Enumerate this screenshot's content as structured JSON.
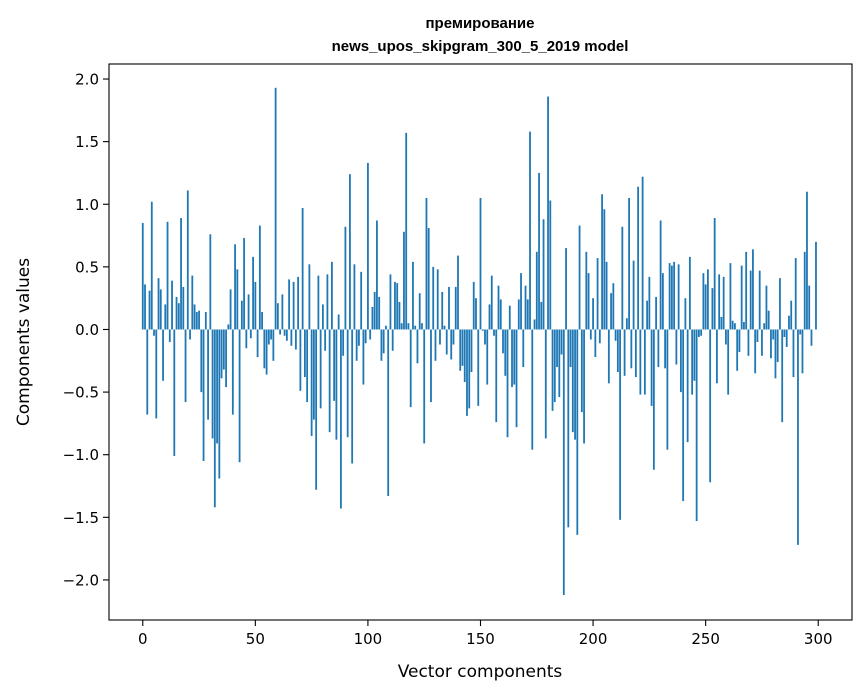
{
  "chart_data": {
    "type": "bar",
    "title_line1": "премирование",
    "title_line2": "news_upos_skipgram_300_5_2019 model",
    "xlabel": "Vector components",
    "ylabel": "Components values",
    "xlim": [
      -15,
      315
    ],
    "ylim": [
      -2.32,
      2.12
    ],
    "xticks": [
      0,
      50,
      100,
      150,
      200,
      250,
      300
    ],
    "yticks": [
      -2.0,
      -1.5,
      -1.0,
      -0.5,
      0.0,
      0.5,
      1.0,
      1.5,
      2.0
    ],
    "ytick_labels": [
      "−2.0",
      "−1.5",
      "−1.0",
      "−0.5",
      "0.0",
      "0.5",
      "1.0",
      "1.5",
      "2.0"
    ],
    "bar_color": "#1f77b4",
    "values": [
      0.85,
      0.36,
      -0.68,
      0.31,
      1.02,
      -0.05,
      -0.71,
      0.41,
      0.32,
      -0.41,
      0.2,
      0.86,
      -0.1,
      0.39,
      -1.01,
      0.26,
      0.21,
      0.89,
      0.34,
      -0.58,
      1.11,
      -0.08,
      0.43,
      0.2,
      0.14,
      0.15,
      -0.5,
      -1.05,
      0.14,
      -0.72,
      0.76,
      -0.87,
      -1.42,
      -0.91,
      -1.19,
      -0.39,
      -0.32,
      -0.46,
      0.04,
      0.32,
      -0.68,
      0.68,
      0.48,
      -1.06,
      0.23,
      0.73,
      -0.15,
      0.28,
      -0.07,
      0.58,
      0.38,
      -0.22,
      0.83,
      0.14,
      -0.31,
      -0.36,
      -0.12,
      -0.08,
      -0.25,
      1.93,
      0.21,
      -0.04,
      0.28,
      -0.05,
      -0.09,
      0.4,
      -0.13,
      0.38,
      -0.16,
      0.42,
      -0.49,
      0.97,
      -0.38,
      -0.58,
      0.52,
      -0.85,
      -0.72,
      -1.28,
      0.43,
      -0.63,
      0.2,
      -0.17,
      0.44,
      -0.82,
      0.54,
      -0.57,
      -0.88,
      0.12,
      -1.43,
      -0.21,
      0.82,
      -0.86,
      1.24,
      -1.07,
      0.52,
      -0.25,
      -0.13,
      0.46,
      -0.44,
      -0.11,
      1.33,
      -0.08,
      0.18,
      0.3,
      0.87,
      0.26,
      -0.25,
      -0.19,
      0.03,
      -1.33,
      0.44,
      -0.17,
      0.38,
      0.37,
      0.22,
      0.05,
      0.78,
      1.57,
      0.05,
      -0.62,
      0.54,
      0.03,
      -0.27,
      0.29,
      0.05,
      -0.91,
      1.05,
      0.81,
      -0.58,
      0.5,
      -0.25,
      0.48,
      -0.12,
      0.3,
      0.03,
      -0.2,
      0.34,
      -0.24,
      -0.12,
      0.34,
      0.59,
      -0.33,
      -0.29,
      -0.42,
      -0.69,
      -0.63,
      -0.34,
      0.38,
      0.25,
      -0.61,
      1.05,
      -0.01,
      -0.12,
      -0.44,
      0.2,
      0.43,
      -0.05,
      -0.74,
      0.35,
      0.24,
      -0.19,
      -0.37,
      -0.86,
      0.19,
      -0.46,
      -0.44,
      -0.78,
      0.24,
      0.45,
      -0.3,
      0.35,
      0.24,
      1.58,
      -0.96,
      0.08,
      0.62,
      1.25,
      0.22,
      0.88,
      -0.87,
      1.86,
      1.03,
      -0.65,
      -0.58,
      -0.3,
      -0.54,
      -0.2,
      -2.12,
      0.65,
      -1.58,
      -0.3,
      -0.82,
      -0.88,
      -1.64,
      0.83,
      -0.66,
      -0.91,
      0.62,
      0.45,
      -0.08,
      0.25,
      -0.22,
      0.57,
      -0.11,
      1.08,
      0.96,
      0.54,
      -0.43,
      0.29,
      0.37,
      -0.09,
      -0.34,
      -1.52,
      0.82,
      -0.37,
      0.09,
      1.05,
      -0.31,
      0.55,
      -0.38,
      1.14,
      -0.52,
      1.22,
      -0.52,
      0.23,
      0.42,
      -0.61,
      -1.12,
      0.26,
      -0.3,
      0.87,
      0.45,
      -0.31,
      -0.96,
      0.53,
      0.51,
      0.54,
      -0.28,
      0.52,
      -0.5,
      -1.37,
      0.25,
      -0.9,
      0.58,
      -0.52,
      -0.41,
      -1.53,
      -0.06,
      -0.05,
      0.45,
      0.36,
      0.48,
      -1.22,
      0.33,
      0.89,
      -0.43,
      0.44,
      0.1,
      0.42,
      -0.12,
      -0.52,
      0.53,
      0.07,
      0.05,
      -0.33,
      -0.18,
      0.51,
      0.06,
      0.62,
      -0.21,
      0.47,
      0.64,
      -0.35,
      -0.1,
      0.47,
      -0.21,
      0.05,
      0.35,
      0.15,
      -0.23,
      -0.08,
      -0.39,
      -0.26,
      0.41,
      -0.74,
      -0.06,
      -0.14,
      0.11,
      0.23,
      -0.38,
      0.57,
      -1.72,
      -0.04,
      -0.35,
      0.62,
      1.1,
      0.35,
      -0.13,
      0.0,
      0.7
    ]
  }
}
